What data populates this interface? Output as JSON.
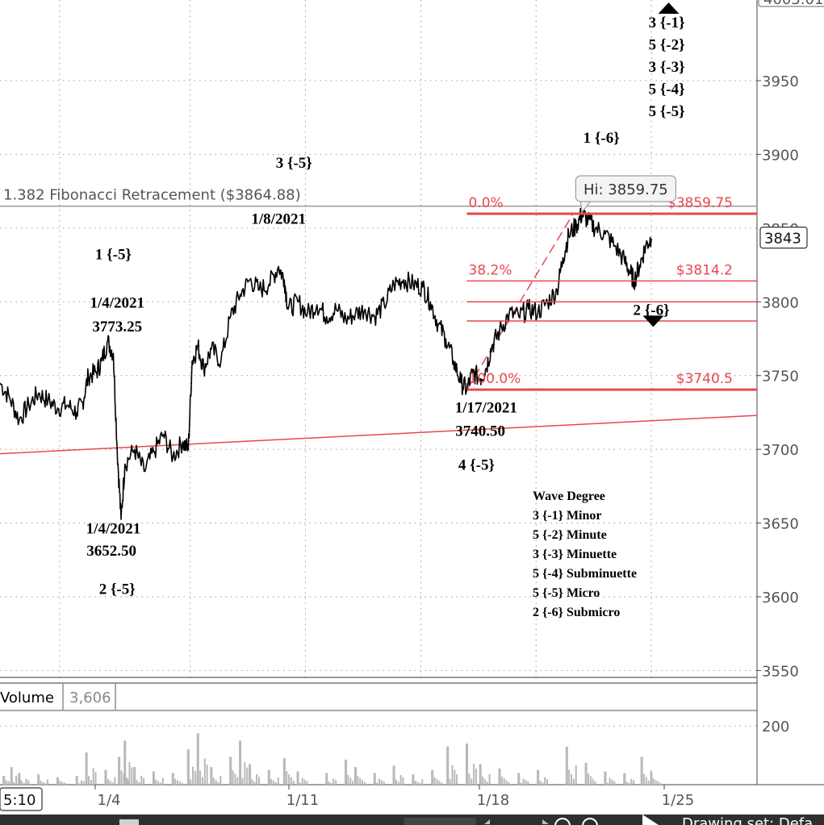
{
  "chart_data": {
    "type": "line",
    "title": "",
    "xlabel": "",
    "ylabel": "",
    "ylim": [
      3550,
      4005
    ],
    "grid": "dotted",
    "y_ticks": [
      "3550",
      "3600",
      "3650",
      "3700",
      "3750",
      "3800",
      "3850",
      "3900",
      "3950"
    ],
    "top_tick_partial": "4005.01",
    "x_ticks": [
      "1/4",
      "1/11",
      "1/18",
      "1/25"
    ],
    "time_label": "5:10",
    "last_price": "3843",
    "price_series_points": [
      [
        0.0,
        3745
      ],
      [
        0.5,
        3735
      ],
      [
        1.0,
        3720
      ],
      [
        1.5,
        3730
      ],
      [
        2.0,
        3738
      ],
      [
        2.5,
        3733
      ],
      [
        3.0,
        3728
      ],
      [
        3.5,
        3730
      ],
      [
        4.0,
        3725
      ],
      [
        4.3,
        3732
      ],
      [
        4.6,
        3750
      ],
      [
        5.0,
        3752
      ],
      [
        5.3,
        3760
      ],
      [
        5.6,
        3773.25
      ],
      [
        5.9,
        3765
      ],
      [
        6.1,
        3700
      ],
      [
        6.3,
        3652.5
      ],
      [
        6.5,
        3690
      ],
      [
        7.0,
        3700
      ],
      [
        7.5,
        3685
      ],
      [
        8.0,
        3698
      ],
      [
        8.5,
        3710
      ],
      [
        9.0,
        3695
      ],
      [
        9.5,
        3705
      ],
      [
        9.8,
        3700
      ],
      [
        10.0,
        3760
      ],
      [
        10.3,
        3770
      ],
      [
        10.6,
        3755
      ],
      [
        11.0,
        3768
      ],
      [
        11.5,
        3760
      ],
      [
        12.0,
        3790
      ],
      [
        12.5,
        3805
      ],
      [
        13.0,
        3815
      ],
      [
        13.5,
        3808
      ],
      [
        14.0,
        3812
      ],
      [
        14.5,
        3824
      ],
      [
        14.8,
        3815
      ],
      [
        15.0,
        3795
      ],
      [
        15.5,
        3800
      ],
      [
        16.0,
        3792
      ],
      [
        16.5,
        3798
      ],
      [
        17.0,
        3790
      ],
      [
        17.5,
        3795
      ],
      [
        18.0,
        3788
      ],
      [
        18.5,
        3792
      ],
      [
        19.0,
        3795
      ],
      [
        19.5,
        3790
      ],
      [
        20.0,
        3798
      ],
      [
        20.5,
        3812
      ],
      [
        21.0,
        3815
      ],
      [
        21.5,
        3812
      ],
      [
        22.0,
        3810
      ],
      [
        22.4,
        3800
      ],
      [
        22.8,
        3785
      ],
      [
        23.2,
        3775
      ],
      [
        23.6,
        3760
      ],
      [
        24.0,
        3745
      ],
      [
        24.3,
        3740.5
      ],
      [
        24.6,
        3752
      ],
      [
        25.0,
        3748
      ],
      [
        25.3,
        3755
      ],
      [
        25.6,
        3770
      ],
      [
        26.0,
        3780
      ],
      [
        26.5,
        3792
      ],
      [
        27.0,
        3790
      ],
      [
        27.5,
        3795
      ],
      [
        28.0,
        3793
      ],
      [
        28.5,
        3800
      ],
      [
        29.0,
        3808
      ],
      [
        29.3,
        3830
      ],
      [
        29.6,
        3845
      ],
      [
        30.0,
        3852
      ],
      [
        30.3,
        3859.75
      ],
      [
        30.6,
        3855
      ],
      [
        31.0,
        3850
      ],
      [
        31.5,
        3846
      ],
      [
        32.0,
        3838
      ],
      [
        32.5,
        3828
      ],
      [
        32.8,
        3820
      ],
      [
        33.0,
        3814
      ],
      [
        33.3,
        3825
      ],
      [
        33.6,
        3838
      ],
      [
        33.9,
        3843
      ]
    ],
    "volume_points": [
      [
        0.2,
        30
      ],
      [
        0.6,
        60
      ],
      [
        1.0,
        40
      ],
      [
        2.0,
        35
      ],
      [
        3.0,
        25
      ],
      [
        4.0,
        30
      ],
      [
        4.5,
        110
      ],
      [
        5.5,
        50
      ],
      [
        6.2,
        95
      ],
      [
        6.5,
        150
      ],
      [
        7.0,
        60
      ],
      [
        8.0,
        45
      ],
      [
        9.0,
        40
      ],
      [
        9.8,
        120
      ],
      [
        10.3,
        175
      ],
      [
        11.0,
        60
      ],
      [
        12.0,
        95
      ],
      [
        12.5,
        150
      ],
      [
        13.0,
        70
      ],
      [
        14.0,
        50
      ],
      [
        14.8,
        90
      ],
      [
        15.5,
        45
      ],
      [
        17.0,
        40
      ],
      [
        18.0,
        85
      ],
      [
        18.5,
        60
      ],
      [
        19.5,
        40
      ],
      [
        20.5,
        65
      ],
      [
        21.5,
        35
      ],
      [
        22.5,
        50
      ],
      [
        23.3,
        130
      ],
      [
        24.3,
        140
      ],
      [
        25.0,
        70
      ],
      [
        26.0,
        55
      ],
      [
        27.0,
        40
      ],
      [
        28.0,
        50
      ],
      [
        29.5,
        130
      ],
      [
        30.5,
        75
      ],
      [
        31.5,
        45
      ],
      [
        32.5,
        40
      ],
      [
        33.4,
        95
      ],
      [
        33.9,
        40
      ]
    ],
    "volume_ticks": [
      "200"
    ],
    "volume_label": "Volume",
    "volume_value": "3,606",
    "fib_ext": {
      "label": "1.382 Fibonacci Retracement ($3864.88)",
      "price": 3864.88
    },
    "fib_levels": [
      {
        "pct": "0.0%",
        "price": 3859.75,
        "price_label": "$3859.75"
      },
      {
        "pct": "38.2%",
        "price": 3814.2,
        "price_label": "$3814.2"
      },
      {
        "pct": "",
        "price": 3800.0,
        "price_label": ""
      },
      {
        "pct": "",
        "price": 3787.0,
        "price_label": ""
      },
      {
        "pct": "100.0%",
        "price": 3740.5,
        "price_label": "$3740.5"
      }
    ],
    "hi_bubble": "Hi: 3859.75",
    "trendline": {
      "from": [
        0.0,
        3697
      ],
      "to": [
        39.4,
        3723
      ]
    },
    "channel_line": {
      "from": [
        24.3,
        3740.5
      ],
      "to": [
        29.8,
        3859
      ]
    },
    "annotations": [
      {
        "text": "3 {-1}",
        "x": 34.7,
        "y": 3986
      },
      {
        "text": "5 {-2}",
        "x": 34.7,
        "y": 3971
      },
      {
        "text": "3 {-3}",
        "x": 34.7,
        "y": 3956
      },
      {
        "text": "5 {-4}",
        "x": 34.7,
        "y": 3941
      },
      {
        "text": "5 {-5}",
        "x": 34.7,
        "y": 3926
      },
      {
        "text": "1 {-6}",
        "x": 31.3,
        "y": 3908
      },
      {
        "text": "3 {-5}",
        "x": 15.3,
        "y": 3891
      },
      {
        "text": "1/8/2021",
        "x": 14.5,
        "y": 3853
      },
      {
        "text": "1 {-5}",
        "x": 5.9,
        "y": 3829
      },
      {
        "text": "1/4/2021",
        "x": 6.1,
        "y": 3796
      },
      {
        "text": "3773.25",
        "x": 6.1,
        "y": 3780
      },
      {
        "text": "2 {-6}",
        "x": 33.9,
        "y": 3791
      },
      {
        "text": "1/17/2021",
        "x": 25.3,
        "y": 3725
      },
      {
        "text": "3740.50",
        "x": 25.0,
        "y": 3709
      },
      {
        "text": "4 {-5}",
        "x": 24.8,
        "y": 3686
      },
      {
        "text": "1/4/2021",
        "x": 5.9,
        "y": 3643
      },
      {
        "text": "3652.50",
        "x": 5.8,
        "y": 3628
      },
      {
        "text": "2 {-5}",
        "x": 6.1,
        "y": 3602
      }
    ],
    "arrows": [
      {
        "dir": "up",
        "x": 34.8,
        "y": 4003
      },
      {
        "dir": "down",
        "x": 34.0,
        "y": 3783
      }
    ],
    "legend_title": "Wave Degree",
    "legend_entries": [
      "3 {-1} Minor",
      "5 {-2} Minute",
      "3 {-3} Minuette",
      "5 {-4} Subminuette",
      "5 {-5} Micro",
      "2 {-6} Submicro"
    ]
  },
  "footer": {
    "drawing_set": "Drawing set: Defa"
  },
  "colors": {
    "fib": "#e8474f",
    "price": "#000000",
    "volume": "#b8b8b8",
    "grid": "#9a9a9a",
    "axis_bg": "#ffffff",
    "footer_bg": "#2f2f2f"
  }
}
